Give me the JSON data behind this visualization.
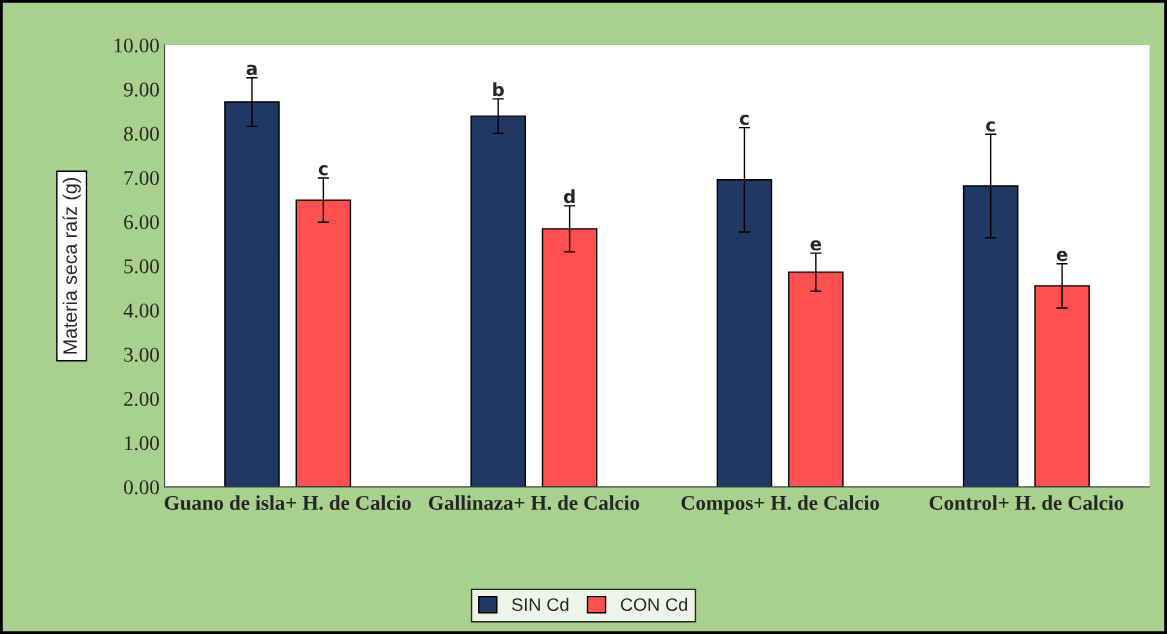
{
  "chart_data": {
    "type": "bar",
    "ylabel": "Materia seca raíz (g)",
    "categories": [
      "Guano de isla+ H. de Calcio",
      "Gallinaza+ H. de Calcio",
      "Compos+ H. de Calcio",
      "Control+ H. de Calcio"
    ],
    "series": [
      {
        "name": "SIN Cd",
        "color": "#1f3864",
        "values": [
          8.71,
          8.39,
          6.95,
          6.81
        ],
        "errors": [
          0.55,
          0.39,
          1.18,
          1.17
        ],
        "value_labels": [
          "a",
          "b",
          "c",
          "c"
        ]
      },
      {
        "name": "CON Cd",
        "color": "#ff5050",
        "values": [
          6.49,
          5.84,
          4.86,
          4.55
        ],
        "errors": [
          0.5,
          0.52,
          0.43,
          0.5
        ],
        "value_labels": [
          "c",
          "d",
          "e",
          "e"
        ]
      }
    ],
    "ylim": [
      0,
      10
    ],
    "yticks": [
      {
        "value": 0,
        "label": "0.00"
      },
      {
        "value": 1,
        "label": "1.00"
      },
      {
        "value": 2,
        "label": "2.00"
      },
      {
        "value": 3,
        "label": "3.00"
      },
      {
        "value": 4,
        "label": "4.00"
      },
      {
        "value": 5,
        "label": "5.00"
      },
      {
        "value": 6,
        "label": "6.00"
      },
      {
        "value": 7,
        "label": "7.00"
      },
      {
        "value": 8,
        "label": "8.00"
      },
      {
        "value": 9,
        "label": "9.00"
      },
      {
        "value": 10,
        "label": "10.00"
      }
    ],
    "grid": false,
    "legend": "bottom"
  }
}
